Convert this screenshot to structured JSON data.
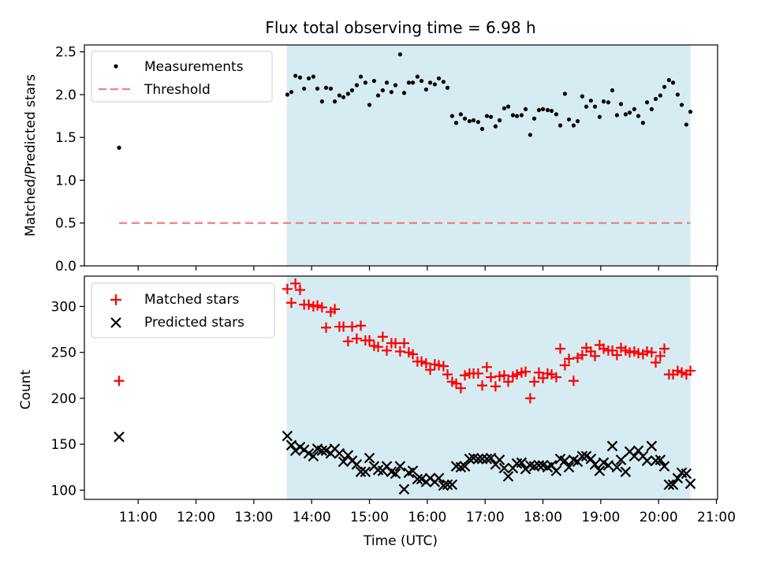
{
  "title": "Flux total observing time = 6.98 h",
  "colors": {
    "measurement": "#000000",
    "threshold": "#f08080",
    "matched": "#ff0000",
    "predicted": "#000000",
    "span": "#add8e6"
  },
  "chart_data": [
    {
      "type": "scatter",
      "ylabel": "Matched/Predicted stars",
      "ylim": [
        0,
        2.58
      ],
      "yticks": [
        0.0,
        0.5,
        1.0,
        1.5,
        2.0,
        2.5
      ],
      "ytick_labels": [
        "0.0",
        "0.5",
        "1.0",
        "1.5",
        "2.0",
        "2.5"
      ],
      "xlim": [
        10.07,
        21.02
      ],
      "highlight_span": [
        13.57,
        20.55
      ],
      "legend": {
        "position": "upper-left",
        "entries": [
          "Measurements",
          "Threshold"
        ]
      },
      "threshold": {
        "name": "Threshold",
        "y": 0.5,
        "x": [
          10.67,
          20.55
        ]
      },
      "series": [
        {
          "name": "Measurements",
          "x": [
            10.67,
            13.58,
            13.65,
            13.72,
            13.8,
            13.87,
            13.95,
            14.03,
            14.1,
            14.18,
            14.25,
            14.33,
            14.4,
            14.48,
            14.55,
            14.63,
            14.7,
            14.78,
            14.85,
            14.93,
            15.0,
            15.08,
            15.15,
            15.23,
            15.3,
            15.38,
            15.45,
            15.53,
            15.6,
            15.68,
            15.75,
            15.83,
            15.9,
            15.98,
            16.05,
            16.13,
            16.2,
            16.28,
            16.35,
            16.43,
            16.5,
            16.58,
            16.65,
            16.73,
            16.8,
            16.88,
            16.95,
            17.03,
            17.1,
            17.18,
            17.25,
            17.33,
            17.4,
            17.48,
            17.55,
            17.63,
            17.7,
            17.78,
            17.85,
            17.93,
            18.0,
            18.08,
            18.15,
            18.23,
            18.3,
            18.38,
            18.45,
            18.53,
            18.6,
            18.68,
            18.75,
            18.83,
            18.9,
            18.98,
            19.05,
            19.13,
            19.2,
            19.28,
            19.35,
            19.43,
            19.5,
            19.58,
            19.65,
            19.73,
            19.8,
            19.88,
            19.95,
            20.03,
            20.1,
            20.18,
            20.25,
            20.33,
            20.4,
            20.48,
            20.55
          ],
          "y": [
            1.38,
            2.0,
            2.03,
            2.22,
            2.2,
            2.07,
            2.19,
            2.21,
            2.07,
            1.92,
            2.08,
            2.07,
            1.92,
            1.99,
            1.97,
            2.01,
            2.05,
            2.11,
            2.21,
            2.14,
            1.88,
            2.16,
            1.99,
            2.05,
            2.14,
            2.03,
            2.11,
            2.47,
            2.02,
            2.14,
            2.14,
            2.21,
            2.16,
            2.06,
            2.14,
            2.12,
            2.19,
            2.15,
            2.08,
            1.75,
            1.67,
            1.77,
            1.72,
            1.69,
            1.7,
            1.68,
            1.6,
            1.75,
            1.74,
            1.63,
            1.7,
            1.84,
            1.86,
            1.76,
            1.75,
            1.76,
            1.83,
            1.53,
            1.72,
            1.82,
            1.83,
            1.82,
            1.81,
            1.77,
            1.64,
            2.01,
            1.71,
            1.64,
            1.69,
            1.98,
            1.86,
            1.93,
            1.86,
            1.74,
            1.92,
            1.91,
            2.05,
            1.76,
            1.89,
            1.77,
            1.79,
            1.83,
            1.75,
            1.67,
            1.91,
            1.83,
            1.95,
            1.99,
            2.09,
            2.17,
            2.14,
            2.0,
            1.88,
            1.65,
            1.8
          ]
        }
      ]
    },
    {
      "type": "scatter",
      "ylabel": "Count",
      "xlabel": "Time (UTC)",
      "ylim": [
        90,
        333
      ],
      "yticks": [
        100,
        150,
        200,
        250,
        300
      ],
      "ytick_labels": [
        "100",
        "150",
        "200",
        "250",
        "300"
      ],
      "xlim": [
        10.07,
        21.02
      ],
      "xticks": [
        11,
        12,
        13,
        14,
        15,
        16,
        17,
        18,
        19,
        20,
        21
      ],
      "xtick_labels": [
        "11:00",
        "12:00",
        "13:00",
        "14:00",
        "15:00",
        "16:00",
        "17:00",
        "18:00",
        "19:00",
        "20:00",
        "21:00"
      ],
      "highlight_span": [
        13.57,
        20.55
      ],
      "legend": {
        "position": "upper-left",
        "entries": [
          "Matched stars",
          "Predicted stars"
        ]
      },
      "series": [
        {
          "name": "Matched stars",
          "marker": "plus",
          "x": [
            10.67,
            13.58,
            13.65,
            13.72,
            13.8,
            13.87,
            13.95,
            14.03,
            14.1,
            14.18,
            14.25,
            14.33,
            14.4,
            14.48,
            14.55,
            14.63,
            14.7,
            14.78,
            14.85,
            14.93,
            15.0,
            15.08,
            15.15,
            15.23,
            15.3,
            15.38,
            15.45,
            15.53,
            15.6,
            15.68,
            15.75,
            15.83,
            15.9,
            15.98,
            16.05,
            16.13,
            16.2,
            16.28,
            16.35,
            16.43,
            16.5,
            16.58,
            16.65,
            16.73,
            16.8,
            16.88,
            16.95,
            17.03,
            17.1,
            17.18,
            17.25,
            17.33,
            17.4,
            17.48,
            17.55,
            17.63,
            17.7,
            17.78,
            17.85,
            17.93,
            18.0,
            18.08,
            18.15,
            18.23,
            18.3,
            18.38,
            18.45,
            18.53,
            18.6,
            18.68,
            18.75,
            18.83,
            18.9,
            18.98,
            19.05,
            19.13,
            19.2,
            19.28,
            19.35,
            19.43,
            19.5,
            19.58,
            19.65,
            19.73,
            19.8,
            19.88,
            19.95,
            20.03,
            20.1,
            20.18,
            20.25,
            20.33,
            20.4,
            20.48,
            20.55
          ],
          "y": [
            219,
            319,
            304,
            325,
            318,
            302,
            302,
            300,
            301,
            299,
            277,
            294,
            297,
            278,
            278,
            262,
            278,
            265,
            279,
            263,
            263,
            257,
            256,
            267,
            252,
            260,
            260,
            251,
            260,
            250,
            248,
            240,
            240,
            238,
            231,
            237,
            236,
            235,
            226,
            218,
            216,
            211,
            225,
            227,
            227,
            227,
            214,
            234,
            223,
            213,
            224,
            225,
            218,
            224,
            226,
            228,
            229,
            200,
            218,
            228,
            222,
            227,
            226,
            223,
            254,
            236,
            243,
            219,
            244,
            247,
            255,
            251,
            246,
            258,
            254,
            252,
            252,
            247,
            255,
            252,
            250,
            251,
            249,
            248,
            251,
            250,
            239,
            246,
            254,
            226,
            226,
            230,
            228,
            226,
            230
          ]
        },
        {
          "name": "Predicted stars",
          "marker": "x",
          "x": [
            10.67,
            13.58,
            13.65,
            13.72,
            13.8,
            13.87,
            13.95,
            14.03,
            14.1,
            14.18,
            14.25,
            14.33,
            14.4,
            14.48,
            14.55,
            14.63,
            14.7,
            14.78,
            14.85,
            14.93,
            15.0,
            15.08,
            15.15,
            15.23,
            15.3,
            15.38,
            15.45,
            15.53,
            15.6,
            15.68,
            15.75,
            15.83,
            15.9,
            15.98,
            16.05,
            16.13,
            16.2,
            16.28,
            16.35,
            16.43,
            16.5,
            16.58,
            16.65,
            16.73,
            16.8,
            16.88,
            16.95,
            17.03,
            17.1,
            17.18,
            17.25,
            17.33,
            17.4,
            17.48,
            17.55,
            17.63,
            17.7,
            17.78,
            17.85,
            17.93,
            18.0,
            18.08,
            18.15,
            18.23,
            18.3,
            18.38,
            18.45,
            18.53,
            18.6,
            18.68,
            18.75,
            18.83,
            18.9,
            18.98,
            19.05,
            19.13,
            19.2,
            19.28,
            19.35,
            19.43,
            19.5,
            19.58,
            19.65,
            19.73,
            19.8,
            19.88,
            19.95,
            20.03,
            20.1,
            20.18,
            20.25,
            20.33,
            20.4,
            20.48,
            20.55
          ],
          "y": [
            158,
            159,
            149,
            143,
            147,
            144,
            140,
            137,
            145,
            143,
            143,
            140,
            145,
            140,
            131,
            138,
            132,
            128,
            120,
            120,
            135,
            126,
            122,
            121,
            126,
            120,
            118,
            126,
            101,
            119,
            121,
            112,
            112,
            109,
            113,
            109,
            113,
            105,
            106,
            106,
            126,
            125,
            126,
            134,
            135,
            134,
            134,
            134,
            135,
            128,
            133,
            124,
            115,
            124,
            129,
            130,
            123,
            127,
            126,
            127,
            127,
            125,
            127,
            121,
            134,
            132,
            125,
            133,
            131,
            137,
            137,
            134,
            128,
            121,
            130,
            127,
            148,
            125,
            133,
            120,
            142,
            137,
            143,
            137,
            132,
            148,
            132,
            133,
            126,
            106,
            106,
            113,
            119,
            118,
            107
          ]
        }
      ]
    }
  ]
}
